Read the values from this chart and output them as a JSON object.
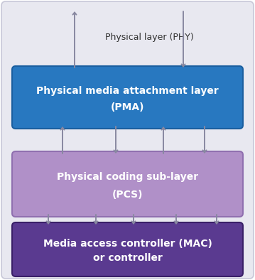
{
  "fig_width": 3.59,
  "fig_height": 3.94,
  "bg_color": "#ffffff",
  "outer_facecolor": "#e8e8f0",
  "outer_edgecolor": "#c8c8d8",
  "pma_facecolor": "#2878c0",
  "pma_edgecolor": "#1a5fa0",
  "pma_text_line1": "Physical media attachment layer",
  "pma_text_line2": "(PMA)",
  "pcs_facecolor": "#b090c8",
  "pcs_edgecolor": "#9070b0",
  "pcs_text_line1": "Physical coding sub-layer",
  "pcs_text_line2": "(PCS)",
  "mac_facecolor": "#5a3a90",
  "mac_edgecolor": "#3a2068",
  "mac_text_line1": "Media access controller (MAC)",
  "mac_text_line2": "or controller",
  "phy_label": "Physical layer (PHY)",
  "arrow_color": "#8888a0",
  "text_white": "#ffffff",
  "text_dark": "#303030"
}
